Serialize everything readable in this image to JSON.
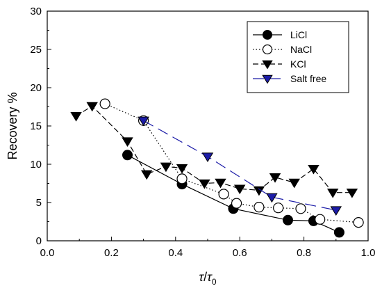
{
  "chart_data": {
    "type": "line",
    "title": "",
    "xlabel": "τ/τ₀",
    "xlabel_parts": {
      "tau": "τ",
      "slash": "/",
      "tau0": "τ",
      "sub": "0"
    },
    "ylabel": "Recovery %",
    "xlim": [
      0.0,
      1.0
    ],
    "ylim": [
      0,
      30
    ],
    "xticks": [
      "0.0",
      "0.2",
      "0.4",
      "0.6",
      "0.8",
      "1.0"
    ],
    "yticks": [
      "0",
      "5",
      "10",
      "15",
      "20",
      "25",
      "30"
    ],
    "grid": false,
    "legend_position": "top-right",
    "series": [
      {
        "name": "LiCl",
        "marker": "filled-circle",
        "line_style": "solid",
        "color": "#000000",
        "x": [
          0.25,
          0.42,
          0.58,
          0.75,
          0.83,
          0.91
        ],
        "y": [
          11.2,
          7.4,
          4.2,
          2.7,
          2.6,
          1.1
        ]
      },
      {
        "name": "NaCl",
        "marker": "open-circle",
        "line_style": "dotted",
        "color": "#000000",
        "x": [
          0.18,
          0.3,
          0.42,
          0.55,
          0.59,
          0.66,
          0.72,
          0.79,
          0.85,
          0.97
        ],
        "y": [
          17.9,
          15.7,
          8.1,
          6.1,
          4.9,
          4.4,
          4.3,
          4.2,
          2.8,
          2.4
        ]
      },
      {
        "name": "KCl",
        "marker": "filled-triangle-down",
        "line_style": "dashed",
        "color": "#000000",
        "x": [
          0.09,
          0.14,
          0.25,
          0.31,
          0.37,
          0.42,
          0.49,
          0.54,
          0.6,
          0.66,
          0.71,
          0.77,
          0.83,
          0.89,
          0.95
        ],
        "y": [
          16.3,
          17.6,
          13.0,
          8.7,
          9.7,
          9.5,
          7.5,
          7.6,
          6.8,
          6.6,
          8.3,
          7.6,
          9.4,
          6.3,
          6.3
        ]
      },
      {
        "name": "Salt free",
        "marker": "filled-triangle-down",
        "line_style": "long-dash",
        "color": "#1c1ca8",
        "x": [
          0.3,
          0.5,
          0.7,
          0.9
        ],
        "y": [
          15.7,
          11.0,
          5.7,
          4.0
        ]
      }
    ]
  }
}
